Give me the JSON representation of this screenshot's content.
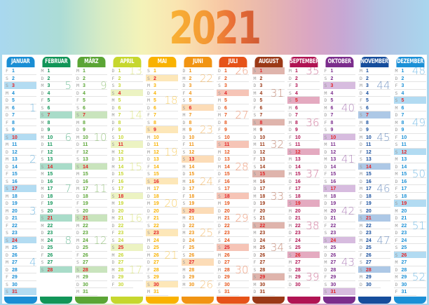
{
  "title": "2021",
  "year": 2021,
  "months": [
    {
      "name": "JANUAR",
      "color": "#1a8ed4",
      "light": "#b3dcf2",
      "days": 31,
      "start": 5
    },
    {
      "name": "FEBRUAR",
      "color": "#119558",
      "light": "#a9dcc9",
      "days": 28,
      "start": 1
    },
    {
      "name": "MÄRZ",
      "color": "#5ba535",
      "light": "#c9e4bd",
      "days": 31,
      "start": 1
    },
    {
      "name": "APRIL",
      "color": "#c6d72e",
      "light": "#ecf3c2",
      "days": 30,
      "start": 4
    },
    {
      "name": "MAI",
      "color": "#f9b200",
      "light": "#fde7b8",
      "days": 31,
      "start": 6
    },
    {
      "name": "JUNI",
      "color": "#f19413",
      "light": "#fcdcb7",
      "days": 30,
      "start": 2
    },
    {
      "name": "JULI",
      "color": "#e65319",
      "light": "#f6c4b6",
      "days": 31,
      "start": 4
    },
    {
      "name": "AUGUST",
      "color": "#9b3917",
      "light": "#dfb4ac",
      "days": 31,
      "start": 0
    },
    {
      "name": "SEPTEMBER",
      "color": "#b01453",
      "light": "#e4aac0",
      "days": 30,
      "start": 3
    },
    {
      "name": "OKTOBER",
      "color": "#7b2d8c",
      "light": "#d7bcdf",
      "days": 31,
      "start": 5
    },
    {
      "name": "NOVEMBER",
      "color": "#164d9c",
      "light": "#adc8e6",
      "days": 30,
      "start": 1
    },
    {
      "name": "DEZEMBER",
      "color": "#1b90d6",
      "light": "#b2dbf2",
      "days": 31,
      "start": 3
    }
  ],
  "weekday_letters": [
    "S",
    "M",
    "D",
    "M",
    "D",
    "F",
    "S"
  ],
  "week_numbers": [
    [
      [
        1,
        6
      ],
      [
        2,
        13
      ],
      [
        3,
        20
      ],
      [
        4,
        27
      ]
    ],
    [
      [
        5,
        3
      ],
      [
        6,
        10
      ],
      [
        7,
        17
      ],
      [
        8,
        24
      ]
    ],
    [
      [
        9,
        3
      ],
      [
        10,
        10
      ],
      [
        11,
        17
      ],
      [
        12,
        24
      ]
    ],
    [
      [
        13,
        1
      ],
      [
        14,
        7
      ],
      [
        15,
        14
      ],
      [
        16,
        21
      ],
      [
        17,
        28
      ]
    ],
    [
      [
        18,
        5
      ],
      [
        19,
        12
      ],
      [
        20,
        19
      ],
      [
        21,
        26
      ]
    ],
    [
      [
        22,
        2
      ],
      [
        23,
        9
      ],
      [
        24,
        16
      ],
      [
        25,
        23
      ],
      [
        26,
        30
      ]
    ],
    [
      [
        26,
        1
      ],
      [
        27,
        7
      ],
      [
        28,
        14
      ],
      [
        29,
        21
      ],
      [
        30,
        28
      ]
    ],
    [
      [
        31,
        4
      ],
      [
        32,
        11
      ],
      [
        33,
        18
      ],
      [
        34,
        25
      ]
    ],
    [
      [
        35,
        1
      ],
      [
        36,
        8
      ],
      [
        37,
        15
      ],
      [
        38,
        22
      ],
      [
        39,
        29
      ]
    ],
    [
      [
        40,
        6
      ],
      [
        41,
        13
      ],
      [
        42,
        20
      ],
      [
        43,
        27
      ]
    ],
    [
      [
        44,
        3
      ],
      [
        45,
        10
      ],
      [
        46,
        17
      ],
      [
        47,
        24
      ]
    ],
    [
      [
        48,
        1
      ],
      [
        49,
        8
      ],
      [
        50,
        15
      ],
      [
        51,
        22
      ],
      [
        52,
        29
      ]
    ]
  ]
}
